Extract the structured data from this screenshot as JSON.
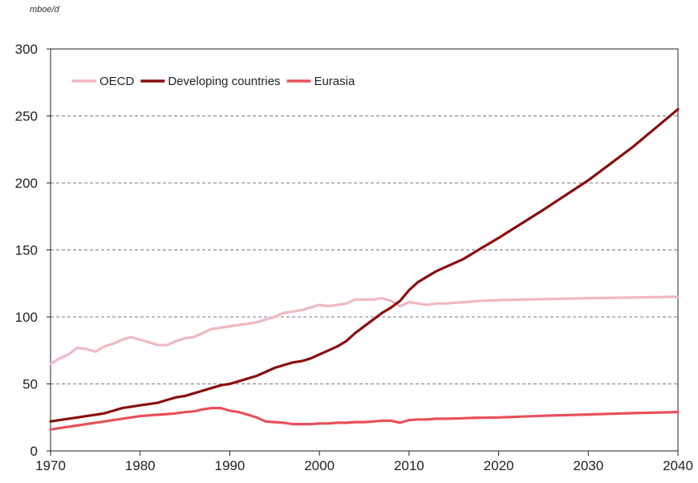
{
  "chart_data": {
    "type": "line",
    "unit_label": "mboe/d",
    "title": "",
    "xlabel": "",
    "ylabel": "",
    "xlim": [
      1970,
      2040
    ],
    "ylim": [
      0,
      300
    ],
    "x_ticks": [
      1970,
      1980,
      1990,
      2000,
      2010,
      2020,
      2030,
      2040
    ],
    "y_ticks": [
      0,
      50,
      100,
      150,
      200,
      250,
      300
    ],
    "grid": "horizontal dashed",
    "legend_position": "top-left",
    "series": [
      {
        "name": "OECD",
        "color": "#f0b8c0",
        "points": [
          [
            1970,
            65
          ],
          [
            1971,
            69
          ],
          [
            1972,
            72
          ],
          [
            1973,
            77
          ],
          [
            1974,
            76
          ],
          [
            1975,
            74
          ],
          [
            1976,
            78
          ],
          [
            1977,
            80
          ],
          [
            1978,
            83
          ],
          [
            1979,
            85
          ],
          [
            1980,
            83
          ],
          [
            1981,
            81
          ],
          [
            1982,
            79
          ],
          [
            1983,
            79
          ],
          [
            1984,
            82
          ],
          [
            1985,
            84
          ],
          [
            1986,
            85
          ],
          [
            1987,
            88
          ],
          [
            1988,
            91
          ],
          [
            1989,
            92
          ],
          [
            1990,
            93
          ],
          [
            1991,
            94
          ],
          [
            1992,
            95
          ],
          [
            1993,
            96
          ],
          [
            1994,
            98
          ],
          [
            1995,
            100
          ],
          [
            1996,
            103
          ],
          [
            1997,
            104
          ],
          [
            1998,
            105
          ],
          [
            1999,
            107
          ],
          [
            2000,
            109
          ],
          [
            2001,
            108
          ],
          [
            2002,
            109
          ],
          [
            2003,
            110
          ],
          [
            2004,
            113
          ],
          [
            2005,
            113
          ],
          [
            2006,
            113
          ],
          [
            2007,
            114
          ],
          [
            2008,
            112
          ],
          [
            2009,
            108
          ],
          [
            2010,
            111
          ],
          [
            2011,
            110
          ],
          [
            2012,
            109
          ],
          [
            2013,
            110
          ],
          [
            2014,
            110
          ],
          [
            2015,
            110.5
          ],
          [
            2016,
            111
          ],
          [
            2017,
            111.5
          ],
          [
            2018,
            112
          ],
          [
            2020,
            112.5
          ],
          [
            2025,
            113.3
          ],
          [
            2030,
            114
          ],
          [
            2035,
            114.5
          ],
          [
            2040,
            115
          ]
        ]
      },
      {
        "name": "Developing countries",
        "color": "#8a0c0c",
        "points": [
          [
            1970,
            22
          ],
          [
            1971,
            23
          ],
          [
            1972,
            24
          ],
          [
            1973,
            25
          ],
          [
            1974,
            26
          ],
          [
            1975,
            27
          ],
          [
            1976,
            28
          ],
          [
            1977,
            30
          ],
          [
            1978,
            32
          ],
          [
            1979,
            33
          ],
          [
            1980,
            34
          ],
          [
            1981,
            35
          ],
          [
            1982,
            36
          ],
          [
            1983,
            38
          ],
          [
            1984,
            40
          ],
          [
            1985,
            41
          ],
          [
            1986,
            43
          ],
          [
            1987,
            45
          ],
          [
            1988,
            47
          ],
          [
            1989,
            49
          ],
          [
            1990,
            50
          ],
          [
            1991,
            52
          ],
          [
            1992,
            54
          ],
          [
            1993,
            56
          ],
          [
            1994,
            59
          ],
          [
            1995,
            62
          ],
          [
            1996,
            64
          ],
          [
            1997,
            66
          ],
          [
            1998,
            67
          ],
          [
            1999,
            69
          ],
          [
            2000,
            72
          ],
          [
            2001,
            75
          ],
          [
            2002,
            78
          ],
          [
            2003,
            82
          ],
          [
            2004,
            88
          ],
          [
            2005,
            93
          ],
          [
            2006,
            98
          ],
          [
            2007,
            103
          ],
          [
            2008,
            107
          ],
          [
            2009,
            112
          ],
          [
            2010,
            120
          ],
          [
            2011,
            126
          ],
          [
            2012,
            130
          ],
          [
            2013,
            134
          ],
          [
            2014,
            137
          ],
          [
            2015,
            140
          ],
          [
            2016,
            143
          ],
          [
            2017,
            147
          ],
          [
            2018,
            151
          ],
          [
            2020,
            159
          ],
          [
            2025,
            180
          ],
          [
            2030,
            202
          ],
          [
            2035,
            227
          ],
          [
            2040,
            255
          ]
        ]
      },
      {
        "name": "Eurasia",
        "color": "#e8505b",
        "points": [
          [
            1970,
            16
          ],
          [
            1971,
            17
          ],
          [
            1972,
            18
          ],
          [
            1973,
            19
          ],
          [
            1974,
            20
          ],
          [
            1975,
            21
          ],
          [
            1976,
            22
          ],
          [
            1977,
            23
          ],
          [
            1978,
            24
          ],
          [
            1979,
            25
          ],
          [
            1980,
            26
          ],
          [
            1981,
            26.5
          ],
          [
            1982,
            27
          ],
          [
            1983,
            27.5
          ],
          [
            1984,
            28
          ],
          [
            1985,
            29
          ],
          [
            1986,
            29.5
          ],
          [
            1987,
            31
          ],
          [
            1988,
            32
          ],
          [
            1989,
            32
          ],
          [
            1990,
            30
          ],
          [
            1991,
            29
          ],
          [
            1992,
            27
          ],
          [
            1993,
            25
          ],
          [
            1994,
            22
          ],
          [
            1995,
            21.5
          ],
          [
            1996,
            21
          ],
          [
            1997,
            20
          ],
          [
            1998,
            20
          ],
          [
            1999,
            20
          ],
          [
            2000,
            20.5
          ],
          [
            2001,
            20.5
          ],
          [
            2002,
            21
          ],
          [
            2003,
            21
          ],
          [
            2004,
            21.5
          ],
          [
            2005,
            21.5
          ],
          [
            2006,
            22
          ],
          [
            2007,
            22.5
          ],
          [
            2008,
            22.5
          ],
          [
            2009,
            21
          ],
          [
            2010,
            23
          ],
          [
            2011,
            23.5
          ],
          [
            2012,
            23.5
          ],
          [
            2013,
            24
          ],
          [
            2014,
            24
          ],
          [
            2015,
            24.2
          ],
          [
            2016,
            24.4
          ],
          [
            2017,
            24.6
          ],
          [
            2018,
            24.8
          ],
          [
            2020,
            25
          ],
          [
            2025,
            26.2
          ],
          [
            2030,
            27.2
          ],
          [
            2035,
            28.2
          ],
          [
            2040,
            29
          ]
        ]
      }
    ]
  }
}
